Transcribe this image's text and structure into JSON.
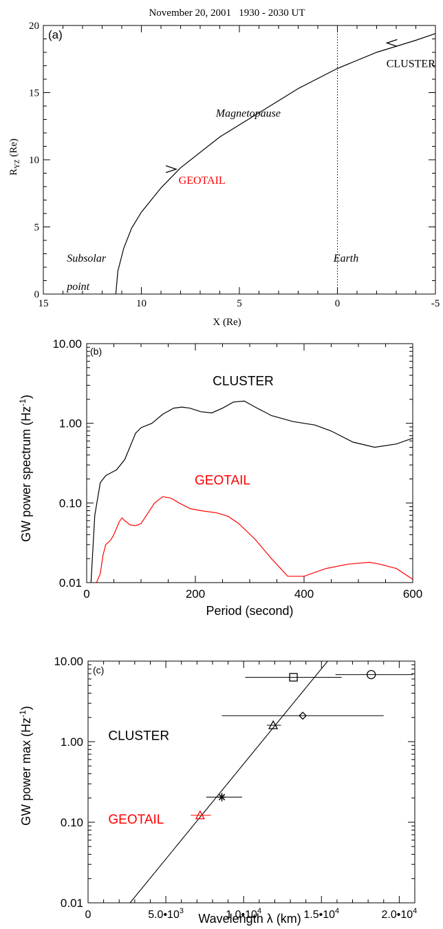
{
  "figure_title": "November 20, 2001   1930 - 2030 UT",
  "colors": {
    "cluster": "#000000",
    "geotail": "#ff0000",
    "axis": "#000000"
  },
  "chart_data": [
    {
      "panel": "(a)",
      "type": "line",
      "xlabel": "X (Re)",
      "ylabel_main": "R",
      "ylabel_sub": "YZ",
      "ylabel_rest": " (Re)",
      "xlim": [
        15,
        -5
      ],
      "ylim": [
        0,
        20
      ],
      "x_ticks": [
        15,
        10,
        5,
        0,
        -5
      ],
      "y_ticks": [
        0,
        5,
        10,
        15,
        20
      ],
      "series": [
        {
          "x": [
            11.3,
            11.2,
            10.9,
            10.5,
            10.0,
            9.0,
            8.0,
            6.0,
            4.0,
            2.0,
            0.0,
            -2.0,
            -4.0,
            -5.0
          ],
          "y": [
            0.0,
            1.7,
            3.4,
            4.9,
            6.1,
            7.9,
            9.4,
            11.7,
            13.5,
            15.3,
            16.8,
            18.0,
            18.9,
            19.4
          ]
        }
      ],
      "earth_line_x": 0,
      "annotations": [
        {
          "text": "Magnetopause",
          "x": 6.2,
          "y": 13.2,
          "style": "italic",
          "color": "#000000"
        },
        {
          "text": "GEOTAIL",
          "x": 8.1,
          "y": 8.2,
          "style": "normal",
          "color": "#ff0000"
        },
        {
          "text": "CLUSTER",
          "x": -2.5,
          "y": 16.9,
          "style": "normal",
          "color": "#000000"
        },
        {
          "text": "Subsolar",
          "x": 13.8,
          "y": 2.4,
          "style": "italic",
          "color": "#000000"
        },
        {
          "text": "point",
          "x": 13.8,
          "y": 0.3,
          "style": "italic",
          "color": "#000000"
        },
        {
          "text": "Earth",
          "x": 0.2,
          "y": 2.4,
          "style": "italic",
          "color": "#000000"
        }
      ],
      "arrows": [
        {
          "name": "geotail-direction-arrow",
          "x": 8.4,
          "y": 9.3,
          "dir": "right"
        },
        {
          "name": "cluster-direction-arrow",
          "x": -2.7,
          "y": 18.7,
          "dir": "left"
        }
      ]
    },
    {
      "panel": "(b)",
      "type": "line",
      "xlabel": "Period (second)",
      "ylabel": "GW power spectrum (Hz",
      "ylabel_sup": "-1",
      "ylabel_end": ")",
      "yscale": "log",
      "xlim": [
        0,
        600
      ],
      "ylim": [
        0.01,
        10
      ],
      "x_ticks": [
        0,
        200,
        400,
        600
      ],
      "y_ticks": [
        0.01,
        0.1,
        1,
        10
      ],
      "y_tick_labels": [
        "0.01",
        "0.10",
        "1.00",
        "10.00"
      ],
      "series": [
        {
          "name": "CLUSTER",
          "color": "#000000",
          "x": [
            8,
            15,
            25,
            35,
            45,
            55,
            70,
            90,
            100,
            120,
            140,
            160,
            175,
            190,
            210,
            230,
            250,
            270,
            290,
            310,
            340,
            380,
            420,
            450,
            490,
            530,
            570,
            600
          ],
          "y": [
            0.01,
            0.07,
            0.18,
            0.22,
            0.24,
            0.26,
            0.35,
            0.75,
            0.88,
            1.0,
            1.3,
            1.55,
            1.6,
            1.55,
            1.4,
            1.35,
            1.55,
            1.85,
            1.9,
            1.6,
            1.25,
            1.05,
            0.95,
            0.8,
            0.58,
            0.5,
            0.55,
            0.65
          ]
        },
        {
          "name": "GEOTAIL",
          "color": "#ff0000",
          "x": [
            18,
            25,
            30,
            35,
            40,
            45,
            50,
            60,
            65,
            70,
            80,
            90,
            100,
            110,
            125,
            140,
            155,
            170,
            190,
            210,
            240,
            260,
            280,
            310,
            340,
            370,
            400,
            440,
            480,
            520,
            540,
            570,
            600
          ],
          "y": [
            0.01,
            0.013,
            0.022,
            0.03,
            0.032,
            0.035,
            0.04,
            0.058,
            0.065,
            0.06,
            0.053,
            0.052,
            0.055,
            0.07,
            0.1,
            0.12,
            0.115,
            0.1,
            0.085,
            0.08,
            0.075,
            0.068,
            0.055,
            0.035,
            0.02,
            0.012,
            0.012,
            0.015,
            0.017,
            0.018,
            0.017,
            0.015,
            0.011
          ]
        }
      ],
      "annotations": [
        {
          "text": "CLUSTER",
          "x": 288,
          "y": 3.0,
          "color": "#000000"
        },
        {
          "text": "GEOTAIL",
          "x": 250,
          "y": 0.17,
          "color": "#ff0000"
        }
      ]
    },
    {
      "panel": "(c)",
      "type": "scatter",
      "xlabel": "Wavelength λ (km)",
      "ylabel": "GW power max (Hz",
      "ylabel_sup": "-1",
      "ylabel_end": ")",
      "yscale": "log",
      "xlim": [
        0,
        21000
      ],
      "ylim": [
        0.01,
        10
      ],
      "x_ticks": [
        0,
        5000,
        10000,
        15000,
        20000
      ],
      "x_tick_labels": [
        {
          "base": "0",
          "exp": ""
        },
        {
          "base": "5.0•10",
          "exp": "3"
        },
        {
          "base": "1.0•10",
          "exp": "4"
        },
        {
          "base": "1.5•10",
          "exp": "4"
        },
        {
          "base": "2.0•10",
          "exp": "4"
        }
      ],
      "y_ticks": [
        0.01,
        0.1,
        1,
        10
      ],
      "y_tick_labels": [
        "0.01",
        "0.10",
        "1.00",
        "10.00"
      ],
      "points": [
        {
          "marker": "square",
          "x": 13200,
          "y": 6.3,
          "xerr_lo": 10100,
          "xerr_hi": 16300,
          "color": "#000000"
        },
        {
          "marker": "circle",
          "x": 18200,
          "y": 6.8,
          "xerr_lo": 15900,
          "xerr_hi": 20900,
          "color": "#000000"
        },
        {
          "marker": "diamond",
          "x": 13800,
          "y": 2.1,
          "xerr_lo": 8600,
          "xerr_hi": 19000,
          "color": "#000000"
        },
        {
          "marker": "triangle",
          "x": 11900,
          "y": 1.6,
          "xerr_lo": 11500,
          "xerr_hi": 12400,
          "color": "#000000"
        },
        {
          "marker": "asterisk",
          "x": 8600,
          "y": 0.205,
          "xerr_lo": 7600,
          "xerr_hi": 9900,
          "color": "#000000"
        },
        {
          "marker": "triangle",
          "x": 7200,
          "y": 0.122,
          "xerr_lo": 6600,
          "xerr_hi": 7900,
          "color": "#ff0000"
        }
      ],
      "fit_line": {
        "x": [
          2700,
          15400
        ],
        "y": [
          0.01,
          10
        ]
      },
      "annotations": [
        {
          "text": "CLUSTER",
          "x": 1300,
          "y": 1.05,
          "color": "#000000"
        },
        {
          "text": "GEOTAIL",
          "x": 1300,
          "y": 0.096,
          "color": "#ff0000"
        }
      ]
    }
  ]
}
